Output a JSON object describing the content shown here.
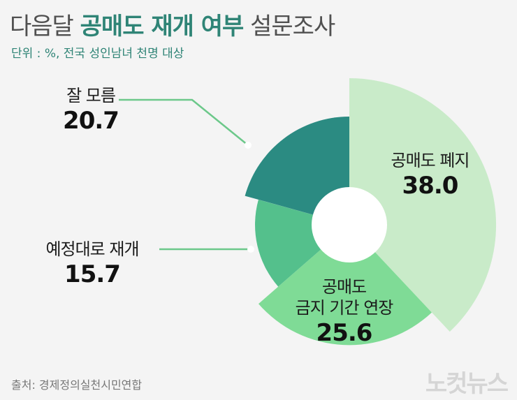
{
  "header": {
    "title_prefix": "다음달",
    "title_bold": "공매도 재개 여부",
    "title_suffix": "설문조사",
    "subtitle": "단위 : %, 전국 성인남녀 천명 대상"
  },
  "chart_data": {
    "type": "pie",
    "title": "다음달 공매도 재개 여부 설문조사",
    "subtitle": "단위 : %, 전국 성인남녀 천명 대상",
    "slices": [
      {
        "label": "공매도 폐지",
        "value": 38.0,
        "value_text": "38.0",
        "color": "#c9ebc9"
      },
      {
        "label": "공매도 금지 기간 연장",
        "label_lines": [
          "공매도",
          "금지 기간 연장"
        ],
        "value": 25.6,
        "value_text": "25.6",
        "color": "#7fdb96"
      },
      {
        "label": "예정대로 재개",
        "value": 15.7,
        "value_text": "15.7",
        "color": "#54c08c"
      },
      {
        "label": "잘 모름",
        "value": 20.7,
        "value_text": "20.7",
        "color": "#2b8b82"
      }
    ]
  },
  "footer": {
    "source": "출처: 경제정의실천시민연합",
    "logo_text": "노컷뉴스"
  }
}
